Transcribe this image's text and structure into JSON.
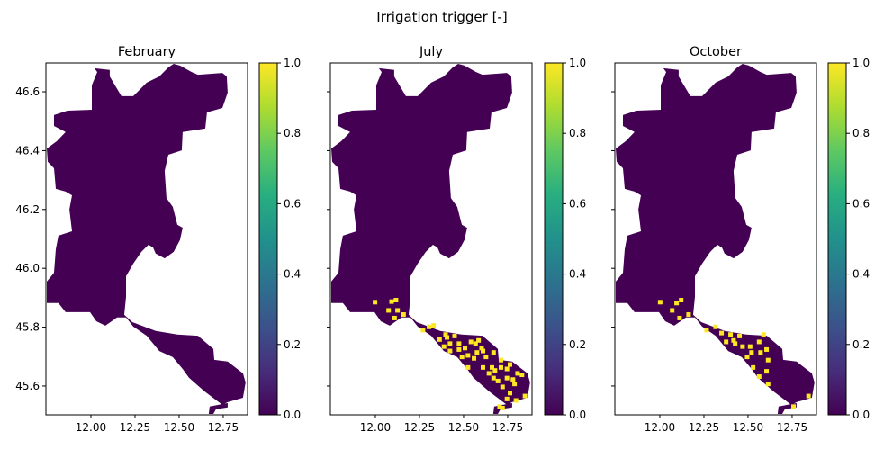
{
  "chart_data": {
    "type": "heatmap",
    "title": "Irrigation trigger [-]",
    "colormap": "viridis",
    "colors": {
      "low": "#440154",
      "high": "#fde725"
    },
    "xlim": [
      11.745,
      12.888
    ],
    "ylim": [
      45.502,
      46.698
    ],
    "xticks": [
      12.0,
      12.25,
      12.5,
      12.75
    ],
    "xtick_labels": [
      "12.00",
      "12.25",
      "12.50",
      "12.75"
    ],
    "yticks": [
      45.6,
      45.8,
      46.0,
      46.2,
      46.4,
      46.6
    ],
    "ytick_labels": [
      "45.6",
      "45.8",
      "46.0",
      "46.2",
      "46.4",
      "46.6"
    ],
    "colorbar": {
      "range": [
        0.0,
        1.0
      ],
      "ticks": [
        0.0,
        0.2,
        0.4,
        0.6,
        0.8,
        1.0
      ],
      "tick_labels": [
        "0.0",
        "0.2",
        "0.4",
        "0.6",
        "0.8",
        "1.0"
      ]
    },
    "region_value_default": 0,
    "region_outline_lonlat": [
      [
        12.02,
        46.68
      ],
      [
        12.107,
        46.674
      ],
      [
        12.107,
        46.652
      ],
      [
        12.173,
        46.585
      ],
      [
        12.24,
        46.585
      ],
      [
        12.265,
        46.6
      ],
      [
        12.316,
        46.631
      ],
      [
        12.388,
        46.652
      ],
      [
        12.439,
        46.683
      ],
      [
        12.469,
        46.695
      ],
      [
        12.505,
        46.689
      ],
      [
        12.571,
        46.667
      ],
      [
        12.607,
        46.658
      ],
      [
        12.745,
        46.664
      ],
      [
        12.77,
        46.652
      ],
      [
        12.775,
        46.597
      ],
      [
        12.745,
        46.545
      ],
      [
        12.658,
        46.53
      ],
      [
        12.648,
        46.475
      ],
      [
        12.52,
        46.463
      ],
      [
        12.515,
        46.401
      ],
      [
        12.439,
        46.386
      ],
      [
        12.418,
        46.331
      ],
      [
        12.428,
        46.239
      ],
      [
        12.464,
        46.209
      ],
      [
        12.49,
        46.148
      ],
      [
        12.52,
        46.138
      ],
      [
        12.505,
        46.096
      ],
      [
        12.469,
        46.056
      ],
      [
        12.418,
        46.034
      ],
      [
        12.367,
        46.05
      ],
      [
        12.352,
        46.071
      ],
      [
        12.326,
        46.08
      ],
      [
        12.286,
        46.056
      ],
      [
        12.24,
        46.016
      ],
      [
        12.199,
        45.973
      ],
      [
        12.199,
        45.903
      ],
      [
        12.189,
        45.842
      ],
      [
        12.235,
        45.817
      ],
      [
        12.367,
        45.787
      ],
      [
        12.49,
        45.775
      ],
      [
        12.607,
        45.771
      ],
      [
        12.694,
        45.726
      ],
      [
        12.699,
        45.689
      ],
      [
        12.775,
        45.683
      ],
      [
        12.862,
        45.643
      ],
      [
        12.877,
        45.612
      ],
      [
        12.862,
        45.56
      ],
      [
        12.775,
        45.545
      ],
      [
        12.745,
        45.536
      ],
      [
        12.643,
        45.582
      ],
      [
        12.556,
        45.628
      ],
      [
        12.52,
        45.658
      ],
      [
        12.464,
        45.698
      ],
      [
        12.388,
        45.719
      ],
      [
        12.316,
        45.771
      ],
      [
        12.24,
        45.802
      ],
      [
        12.199,
        45.833
      ],
      [
        12.148,
        45.833
      ],
      [
        12.082,
        45.805
      ],
      [
        12.031,
        45.82
      ],
      [
        11.995,
        45.851
      ],
      [
        11.857,
        45.851
      ],
      [
        11.816,
        45.882
      ],
      [
        11.75,
        45.882
      ],
      [
        11.75,
        45.955
      ],
      [
        11.791,
        45.985
      ],
      [
        11.801,
        46.065
      ],
      [
        11.816,
        46.111
      ],
      [
        11.893,
        46.126
      ],
      [
        11.878,
        46.2
      ],
      [
        11.893,
        46.248
      ],
      [
        11.857,
        46.261
      ],
      [
        11.801,
        46.27
      ],
      [
        11.791,
        46.34
      ],
      [
        11.755,
        46.362
      ],
      [
        11.75,
        46.407
      ],
      [
        11.806,
        46.432
      ],
      [
        11.857,
        46.463
      ],
      [
        11.791,
        46.484
      ],
      [
        11.791,
        46.521
      ],
      [
        11.867,
        46.536
      ],
      [
        12.005,
        46.539
      ],
      [
        12.005,
        46.622
      ],
      [
        12.036,
        46.667
      ]
    ],
    "region_fragment_lonlat": [
      [
        12.673,
        45.53
      ],
      [
        12.775,
        45.542
      ],
      [
        12.775,
        45.527
      ],
      [
        12.709,
        45.521
      ],
      [
        12.694,
        45.505
      ],
      [
        12.668,
        45.505
      ]
    ],
    "panels": [
      {
        "title": "February",
        "trigger_cells_value_1": []
      },
      {
        "title": "July",
        "trigger_cells_value_1": [
          [
            11.998,
            45.885
          ],
          [
            12.092,
            45.887
          ],
          [
            12.117,
            45.892
          ],
          [
            12.075,
            45.857
          ],
          [
            12.126,
            45.857
          ],
          [
            12.109,
            45.831
          ],
          [
            12.16,
            45.843
          ],
          [
            12.304,
            45.801
          ],
          [
            12.33,
            45.806
          ],
          [
            12.398,
            45.775
          ],
          [
            12.406,
            45.765
          ],
          [
            12.364,
            45.758
          ],
          [
            12.423,
            45.744
          ],
          [
            12.449,
            45.77
          ],
          [
            12.474,
            45.744
          ],
          [
            12.474,
            45.724
          ],
          [
            12.508,
            45.729
          ],
          [
            12.542,
            45.75
          ],
          [
            12.568,
            45.744
          ],
          [
            12.585,
            45.755
          ],
          [
            12.602,
            45.729
          ],
          [
            12.61,
            45.719
          ],
          [
            12.525,
            45.704
          ],
          [
            12.559,
            45.694
          ],
          [
            12.576,
            45.714
          ],
          [
            12.627,
            45.699
          ],
          [
            12.67,
            45.714
          ],
          [
            12.712,
            45.688
          ],
          [
            12.661,
            45.663
          ],
          [
            12.678,
            45.653
          ],
          [
            12.644,
            45.643
          ],
          [
            12.712,
            45.663
          ],
          [
            12.746,
            45.658
          ],
          [
            12.763,
            45.673
          ],
          [
            12.61,
            45.663
          ],
          [
            12.67,
            45.627
          ],
          [
            12.695,
            45.617
          ],
          [
            12.721,
            45.597
          ],
          [
            12.746,
            45.627
          ],
          [
            12.78,
            45.622
          ],
          [
            12.806,
            45.643
          ],
          [
            12.831,
            45.638
          ],
          [
            12.789,
            45.607
          ],
          [
            12.763,
            45.576
          ],
          [
            12.746,
            45.556
          ],
          [
            12.797,
            45.551
          ],
          [
            12.704,
            45.53
          ],
          [
            12.721,
            45.525
          ],
          [
            12.848,
            45.566
          ],
          [
            12.525,
            45.663
          ],
          [
            12.491,
            45.699
          ],
          [
            12.423,
            45.719
          ],
          [
            12.389,
            45.734
          ],
          [
            12.27,
            45.79
          ]
        ]
      },
      {
        "title": "October",
        "trigger_cells_value_1": [
          [
            12.002,
            45.885
          ],
          [
            12.095,
            45.882
          ],
          [
            12.121,
            45.892
          ],
          [
            12.07,
            45.857
          ],
          [
            12.112,
            45.831
          ],
          [
            12.163,
            45.843
          ],
          [
            12.265,
            45.79
          ],
          [
            12.316,
            45.801
          ],
          [
            12.35,
            45.78
          ],
          [
            12.401,
            45.775
          ],
          [
            12.452,
            45.77
          ],
          [
            12.418,
            45.755
          ],
          [
            12.427,
            45.744
          ],
          [
            12.376,
            45.75
          ],
          [
            12.469,
            45.734
          ],
          [
            12.512,
            45.734
          ],
          [
            12.563,
            45.75
          ],
          [
            12.588,
            45.775
          ],
          [
            12.605,
            45.724
          ],
          [
            12.495,
            45.699
          ],
          [
            12.52,
            45.714
          ],
          [
            12.614,
            45.688
          ],
          [
            12.571,
            45.714
          ],
          [
            12.529,
            45.663
          ],
          [
            12.605,
            45.65
          ],
          [
            12.563,
            45.632
          ],
          [
            12.614,
            45.607
          ],
          [
            12.843,
            45.566
          ],
          [
            12.758,
            45.53
          ]
        ]
      }
    ]
  }
}
